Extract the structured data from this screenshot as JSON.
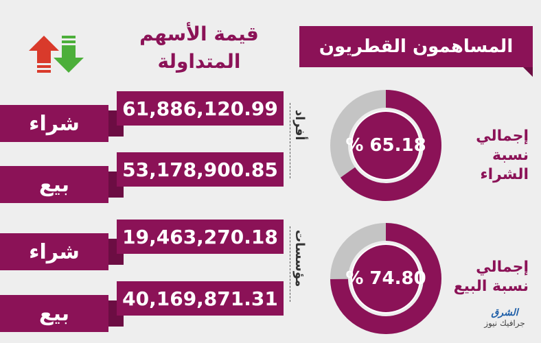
{
  "title": "المساهمون القطريون",
  "column_header": {
    "line1": "قيمة الأسهم",
    "line2": "المتداولة"
  },
  "categories": {
    "individuals": "أفراد",
    "institutions": "مؤسسات"
  },
  "rows": [
    {
      "category": "أفراد",
      "label": "شراء",
      "value": "61,886,120.99"
    },
    {
      "category": "أفراد",
      "label": "بيع",
      "value": "53,178,900.85"
    },
    {
      "category": "مؤسسات",
      "label": "شراء",
      "value": "19,463,270.18"
    },
    {
      "category": "مؤسسات",
      "label": "بيع",
      "value": "40,169,871.31"
    }
  ],
  "donuts": [
    {
      "value_text": "% 65.18",
      "value": 65.18,
      "caption_line1": "إجمالي",
      "caption_line2": "نسبة الشراء"
    },
    {
      "value_text": "% 74.80",
      "value": 74.8,
      "caption_line1": "إجمالي",
      "caption_line2": "نسبة البيع"
    }
  ],
  "logo": {
    "line1": "الشرق",
    "line2": "جرافيك نيوز"
  },
  "colors": {
    "primary": "#8b1257",
    "secondary_grey": "#c4c4c4",
    "arrow_up": "#d93a2b",
    "arrow_down": "#4caf3a"
  },
  "chart_data": [
    {
      "type": "table",
      "title": "قيمة الأسهم المتداولة",
      "series": [
        {
          "name": "أفراد",
          "values": [
            61886120.99,
            53178900.85
          ]
        },
        {
          "name": "مؤسسات",
          "values": [
            19463270.18,
            40169871.31
          ]
        }
      ],
      "categories": [
        "شراء",
        "بيع"
      ]
    },
    {
      "type": "pie",
      "title": "إجمالي نسبة الشراء",
      "values": [
        65.18,
        34.82
      ]
    },
    {
      "type": "pie",
      "title": "إجمالي نسبة البيع",
      "values": [
        74.8,
        25.2
      ]
    }
  ]
}
